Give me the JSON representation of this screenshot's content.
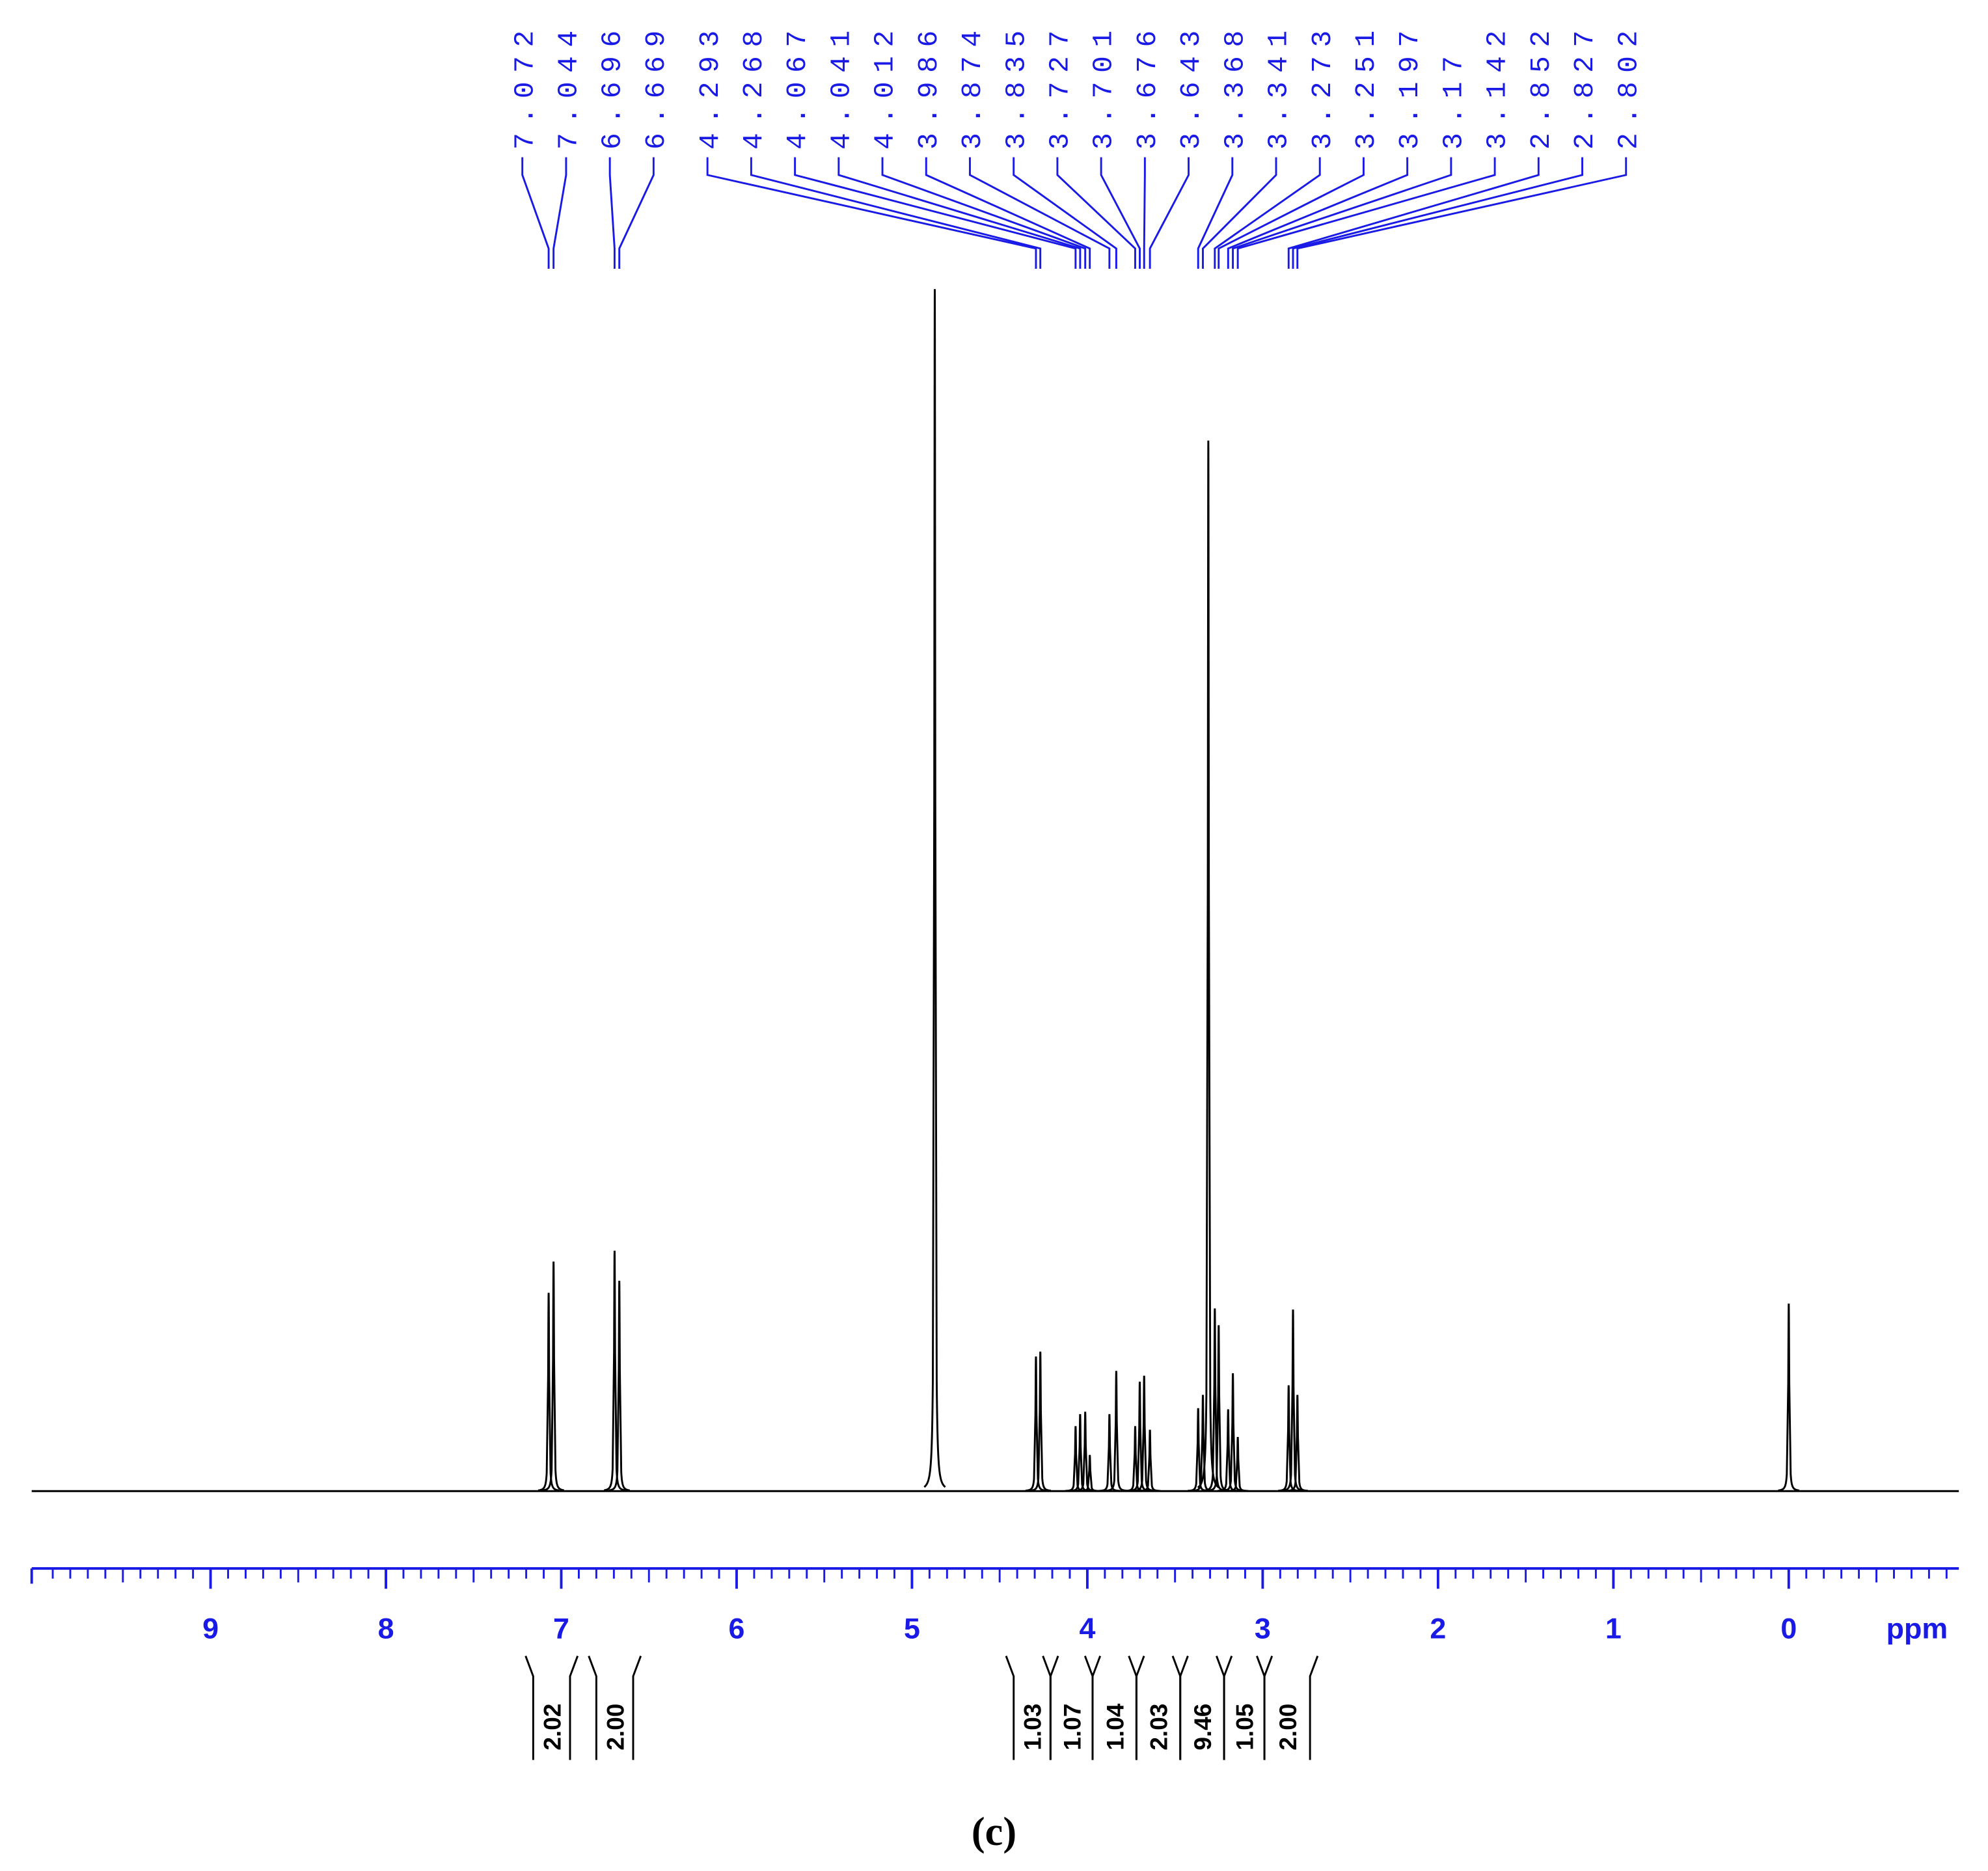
{
  "chart_data": {
    "type": "nmr",
    "caption": "(c)",
    "x_label": "ppm",
    "xlim": [
      10.02,
      -0.97
    ],
    "xticks": [
      9,
      8,
      7,
      6,
      5,
      4,
      3,
      2,
      1,
      0
    ],
    "ylim": [
      0,
      100
    ],
    "color": "#000000",
    "axis_color": "#1a1ae6",
    "label_color": "#1a1ae6",
    "peak_labels": [
      7.072,
      7.044,
      6.696,
      6.669,
      4.293,
      4.268,
      4.067,
      4.041,
      4.012,
      3.986,
      3.874,
      3.835,
      3.727,
      3.701,
      3.676,
      3.643,
      3.368,
      3.341,
      3.273,
      3.251,
      3.197,
      3.17,
      3.142,
      2.852,
      2.827,
      2.802
    ],
    "x": [
      7.072,
      7.044,
      6.696,
      6.669,
      4.87,
      4.293,
      4.268,
      4.067,
      4.041,
      4.012,
      3.986,
      3.874,
      3.835,
      3.727,
      3.701,
      3.676,
      3.643,
      3.368,
      3.341,
      3.31,
      3.273,
      3.251,
      3.197,
      3.17,
      3.142,
      2.852,
      2.827,
      2.802,
      0.0
    ],
    "values": [
      16.5,
      19.1,
      20.0,
      17.5,
      100,
      11.2,
      11.6,
      5.4,
      6.4,
      6.6,
      3.0,
      6.4,
      10.0,
      5.4,
      9.1,
      9.6,
      5.1,
      6.9,
      8.0,
      87.4,
      15.2,
      13.8,
      6.8,
      9.8,
      4.5,
      8.8,
      15.1,
      8.0,
      15.6
    ],
    "integrals": {
      "ranges": [
        [
          7.16,
          6.95
        ],
        [
          6.8,
          6.59
        ],
        [
          4.42,
          4.21
        ],
        [
          4.21,
          3.97
        ],
        [
          3.97,
          3.72
        ],
        [
          3.72,
          3.47
        ],
        [
          3.47,
          3.22
        ],
        [
          3.22,
          2.99
        ],
        [
          2.99,
          2.73
        ]
      ],
      "values": [
        2.02,
        2.0,
        1.03,
        1.07,
        1.04,
        2.03,
        9.46,
        1.05,
        2.0
      ],
      "value_labels": [
        "2.02",
        "2.00",
        "1.03",
        "1.07",
        "1.04",
        "2.03",
        "9.46",
        "1.05",
        "2.00"
      ]
    }
  }
}
